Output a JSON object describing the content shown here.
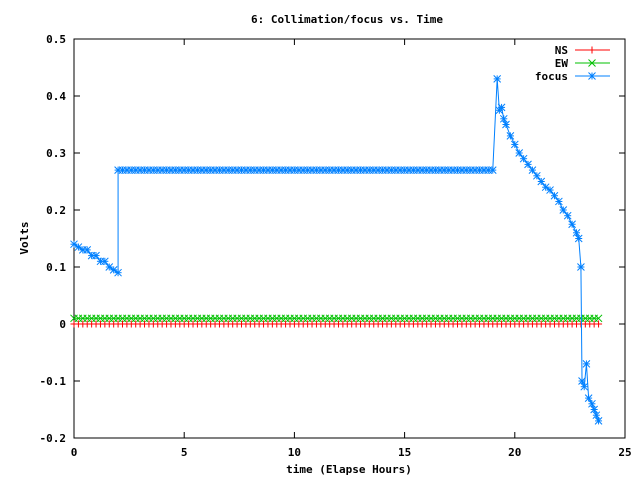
{
  "chart_data": {
    "type": "line",
    "title": "6: Collimation/focus vs. Time",
    "xlabel": "time (Elapse Hours)",
    "ylabel": "Volts",
    "xlim": [
      0,
      25
    ],
    "ylim": [
      -0.2,
      0.5
    ],
    "xticks": [
      0,
      5,
      10,
      15,
      20,
      25
    ],
    "yticks": [
      -0.2,
      -0.1,
      0,
      0.1,
      0.2,
      0.3,
      0.4,
      0.5
    ],
    "grid": false,
    "legend_position": "top-right",
    "series": [
      {
        "name": "NS",
        "color": "#ff0000",
        "marker": "plus",
        "x_range": [
          0,
          23.8
        ],
        "x_step": 0.2,
        "constant_value": 0.0
      },
      {
        "name": "EW",
        "color": "#00c000",
        "marker": "cross",
        "x_range": [
          0,
          23.8
        ],
        "x_step": 0.2,
        "constant_value": 0.01
      },
      {
        "name": "focus",
        "color": "#0080ff",
        "marker": "star",
        "points": [
          [
            0,
            0.14
          ],
          [
            0.2,
            0.135
          ],
          [
            0.4,
            0.13
          ],
          [
            0.6,
            0.13
          ],
          [
            0.8,
            0.12
          ],
          [
            1.0,
            0.12
          ],
          [
            1.2,
            0.11
          ],
          [
            1.4,
            0.11
          ],
          [
            1.6,
            0.1
          ],
          [
            1.8,
            0.095
          ],
          [
            2.0,
            0.09
          ],
          [
            2.0,
            0.27
          ],
          [
            19.0,
            0.27
          ],
          [
            19.2,
            0.43
          ],
          [
            19.3,
            0.375
          ],
          [
            19.4,
            0.38
          ],
          [
            19.5,
            0.36
          ],
          [
            19.6,
            0.35
          ],
          [
            19.8,
            0.33
          ],
          [
            20.0,
            0.315
          ],
          [
            20.2,
            0.3
          ],
          [
            20.4,
            0.29
          ],
          [
            20.6,
            0.28
          ],
          [
            20.8,
            0.27
          ],
          [
            21.0,
            0.26
          ],
          [
            21.2,
            0.25
          ],
          [
            21.4,
            0.24
          ],
          [
            21.6,
            0.235
          ],
          [
            21.8,
            0.225
          ],
          [
            22.0,
            0.215
          ],
          [
            22.2,
            0.2
          ],
          [
            22.4,
            0.19
          ],
          [
            22.6,
            0.175
          ],
          [
            22.8,
            0.16
          ],
          [
            22.9,
            0.15
          ],
          [
            23.0,
            0.1
          ],
          [
            23.05,
            -0.1
          ],
          [
            23.15,
            -0.11
          ],
          [
            23.25,
            -0.07
          ],
          [
            23.35,
            -0.13
          ],
          [
            23.5,
            -0.14
          ],
          [
            23.6,
            -0.15
          ],
          [
            23.7,
            -0.16
          ],
          [
            23.8,
            -0.17
          ]
        ]
      }
    ]
  }
}
